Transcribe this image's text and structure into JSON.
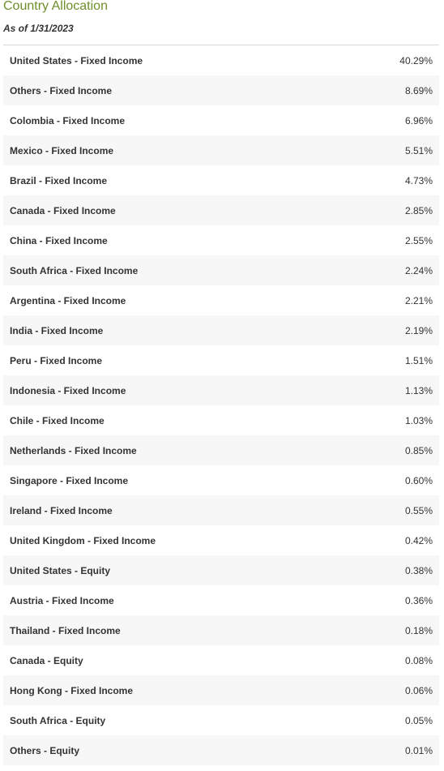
{
  "header": {
    "title": "Country Allocation",
    "as_of": "As of 1/31/2023"
  },
  "colors": {
    "title": "#6e8f2a",
    "stripe": "#f7f7f7",
    "rule": "#d8d8d8"
  },
  "rows": [
    {
      "name": "United States - Fixed Income",
      "value": "40.29%"
    },
    {
      "name": "Others - Fixed Income",
      "value": "8.69%"
    },
    {
      "name": "Colombia - Fixed Income",
      "value": "6.96%"
    },
    {
      "name": "Mexico - Fixed Income",
      "value": "5.51%"
    },
    {
      "name": "Brazil - Fixed Income",
      "value": "4.73%"
    },
    {
      "name": "Canada - Fixed Income",
      "value": "2.85%"
    },
    {
      "name": "China - Fixed Income",
      "value": "2.55%"
    },
    {
      "name": "South Africa - Fixed Income",
      "value": "2.24%"
    },
    {
      "name": "Argentina - Fixed Income",
      "value": "2.21%"
    },
    {
      "name": "India - Fixed Income",
      "value": "2.19%"
    },
    {
      "name": "Peru - Fixed Income",
      "value": "1.51%"
    },
    {
      "name": "Indonesia - Fixed Income",
      "value": "1.13%"
    },
    {
      "name": "Chile - Fixed Income",
      "value": "1.03%"
    },
    {
      "name": "Netherlands - Fixed Income",
      "value": "0.85%"
    },
    {
      "name": "Singapore - Fixed Income",
      "value": "0.60%"
    },
    {
      "name": "Ireland - Fixed Income",
      "value": "0.55%"
    },
    {
      "name": "United Kingdom - Fixed Income",
      "value": "0.42%"
    },
    {
      "name": "United States - Equity",
      "value": "0.38%"
    },
    {
      "name": "Austria - Fixed Income",
      "value": "0.36%"
    },
    {
      "name": "Thailand - Fixed Income",
      "value": "0.18%"
    },
    {
      "name": "Canada - Equity",
      "value": "0.08%"
    },
    {
      "name": "Hong Kong - Fixed Income",
      "value": "0.06%"
    },
    {
      "name": "South Africa - Equity",
      "value": "0.05%"
    },
    {
      "name": "Others - Equity",
      "value": "0.01%"
    }
  ]
}
